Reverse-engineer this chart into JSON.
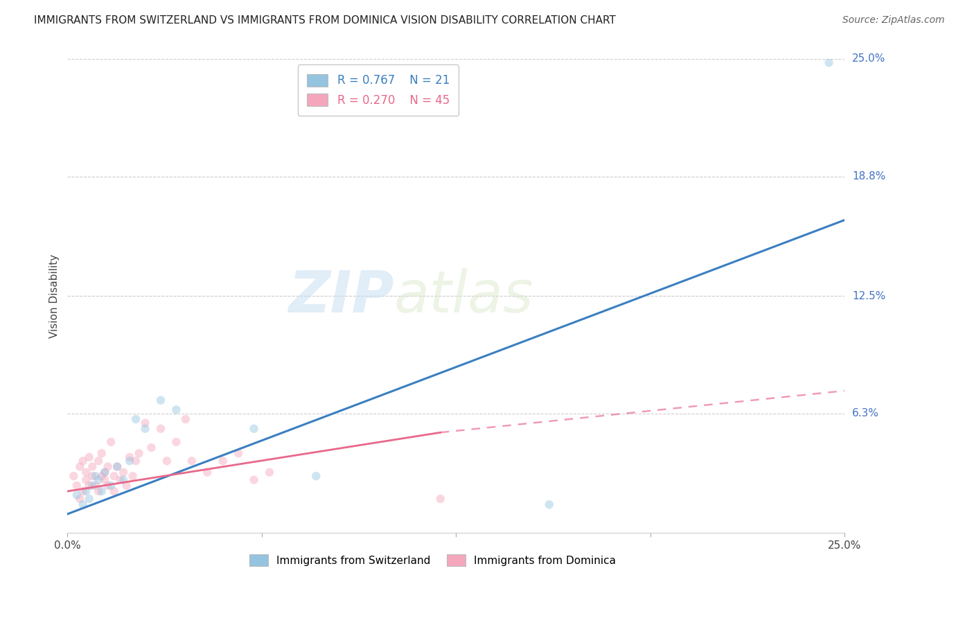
{
  "title": "IMMIGRANTS FROM SWITZERLAND VS IMMIGRANTS FROM DOMINICA VISION DISABILITY CORRELATION CHART",
  "source": "Source: ZipAtlas.com",
  "ylabel": "Vision Disability",
  "xlim": [
    0.0,
    0.25
  ],
  "ylim": [
    0.0,
    0.25
  ],
  "ytick_labels": [
    "6.3%",
    "12.5%",
    "18.8%",
    "25.0%"
  ],
  "ytick_positions": [
    0.063,
    0.125,
    0.188,
    0.25
  ],
  "grid_color": "#cccccc",
  "background_color": "#ffffff",
  "legend_r1": "R = 0.767",
  "legend_n1": "N = 21",
  "legend_r2": "R = 0.270",
  "legend_n2": "N = 45",
  "color_swiss": "#94c4e0",
  "color_dom": "#f4a7bc",
  "swiss_scatter_x": [
    0.003,
    0.005,
    0.006,
    0.007,
    0.008,
    0.009,
    0.01,
    0.011,
    0.012,
    0.014,
    0.016,
    0.018,
    0.02,
    0.022,
    0.025,
    0.03,
    0.035,
    0.06,
    0.08,
    0.155,
    0.245
  ],
  "swiss_scatter_y": [
    0.02,
    0.015,
    0.022,
    0.018,
    0.025,
    0.03,
    0.028,
    0.022,
    0.032,
    0.025,
    0.035,
    0.028,
    0.038,
    0.06,
    0.055,
    0.07,
    0.065,
    0.055,
    0.03,
    0.015,
    0.248
  ],
  "dom_scatter_x": [
    0.002,
    0.003,
    0.004,
    0.004,
    0.005,
    0.005,
    0.006,
    0.006,
    0.007,
    0.007,
    0.008,
    0.008,
    0.009,
    0.01,
    0.01,
    0.011,
    0.011,
    0.012,
    0.012,
    0.013,
    0.013,
    0.014,
    0.015,
    0.015,
    0.016,
    0.017,
    0.018,
    0.019,
    0.02,
    0.021,
    0.022,
    0.023,
    0.025,
    0.027,
    0.03,
    0.032,
    0.035,
    0.038,
    0.04,
    0.045,
    0.05,
    0.055,
    0.06,
    0.065,
    0.12
  ],
  "dom_scatter_y": [
    0.03,
    0.025,
    0.018,
    0.035,
    0.022,
    0.038,
    0.028,
    0.032,
    0.025,
    0.04,
    0.03,
    0.035,
    0.025,
    0.038,
    0.022,
    0.03,
    0.042,
    0.028,
    0.032,
    0.035,
    0.025,
    0.048,
    0.03,
    0.022,
    0.035,
    0.028,
    0.032,
    0.025,
    0.04,
    0.03,
    0.038,
    0.042,
    0.058,
    0.045,
    0.055,
    0.038,
    0.048,
    0.06,
    0.038,
    0.032,
    0.038,
    0.042,
    0.028,
    0.032,
    0.018
  ],
  "watermark_zip": "ZIP",
  "watermark_atlas": "atlas",
  "marker_size": 80,
  "marker_alpha": 0.45,
  "line_color_swiss": "#3a7fc1",
  "line_color_dom": "#e8688a",
  "trendline_swiss_x0": 0.0,
  "trendline_swiss_y0": 0.01,
  "trendline_swiss_x1": 0.25,
  "trendline_swiss_y1": 0.165,
  "trendline_dom_solid_x0": 0.0,
  "trendline_dom_solid_y0": 0.022,
  "trendline_dom_solid_x1": 0.12,
  "trendline_dom_solid_y1": 0.053,
  "trendline_dom_dash_x0": 0.12,
  "trendline_dom_dash_y0": 0.053,
  "trendline_dom_dash_x1": 0.25,
  "trendline_dom_dash_y1": 0.075
}
